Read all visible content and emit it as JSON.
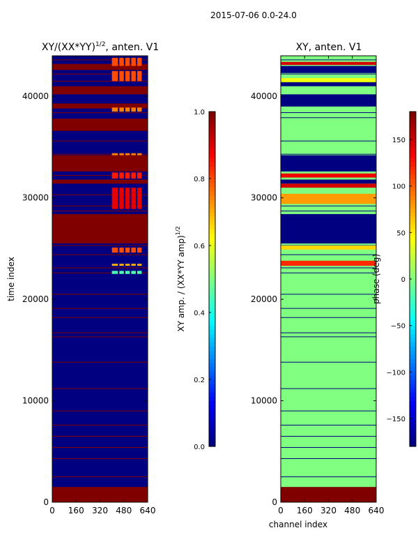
{
  "suptitle": "2015-07-06 0.0-24.0",
  "chart_data": [
    {
      "type": "heatmap",
      "title_prefix": "XY/(XX*YY)",
      "title_exponent": "1/2",
      "title_suffix": ", anten. V1",
      "xlabel": "",
      "ylabel": "time index",
      "xlim": [
        0,
        640
      ],
      "ylim": [
        0,
        44000
      ],
      "xticks": [
        0,
        160,
        320,
        480,
        640
      ],
      "yticks": [
        0,
        10000,
        20000,
        30000,
        40000
      ],
      "colormap": "jet",
      "background_value": 0.0,
      "bands": [
        {
          "from": 0,
          "to": 1500,
          "value": 1.0
        },
        {
          "from": 25500,
          "to": 28400,
          "value": 1.0
        },
        {
          "from": 31400,
          "to": 31800,
          "value": 1.0
        },
        {
          "from": 32600,
          "to": 34200,
          "value": 1.0
        },
        {
          "from": 36600,
          "to": 37800,
          "value": 1.0
        },
        {
          "from": 38800,
          "to": 39300,
          "value": 1.0
        },
        {
          "from": 40200,
          "to": 41000,
          "value": 1.0
        },
        {
          "from": 42600,
          "to": 43200,
          "value": 1.0
        }
      ],
      "lines": [
        2500,
        4300,
        5400,
        6500,
        7600,
        9000,
        11200,
        13800,
        16300,
        16700,
        18200,
        19100,
        20500,
        22600,
        23100,
        24400,
        25300,
        28700,
        29200,
        30300,
        32200,
        34300,
        35600,
        38400,
        41500,
        42200,
        43600
      ],
      "line_value": 1.0,
      "features": [
        {
          "from": 22500,
          "to": 22800,
          "value": 0.45
        },
        {
          "from": 23300,
          "to": 23500,
          "value": 0.7
        },
        {
          "from": 24600,
          "to": 25100,
          "value": 0.8
        },
        {
          "from": 28900,
          "to": 31000,
          "value": 0.9
        },
        {
          "from": 31900,
          "to": 32500,
          "value": 0.85
        },
        {
          "from": 34200,
          "to": 34400,
          "value": 0.75
        },
        {
          "from": 38500,
          "to": 38900,
          "value": 0.75
        },
        {
          "from": 41500,
          "to": 42500,
          "value": 0.8
        },
        {
          "from": 43000,
          "to": 43800,
          "value": 0.8
        }
      ],
      "colorbar": {
        "label_prefix": "XY amp. / (XX*YY amp)",
        "label_exponent": "1/2",
        "range": [
          0.0,
          1.0
        ],
        "ticks": [
          0.0,
          0.2,
          0.4,
          0.6,
          0.8,
          1.0
        ],
        "tick_labels": [
          "0.0",
          "0.2",
          "0.4",
          "0.6",
          "0.8",
          "1.0"
        ]
      }
    },
    {
      "type": "heatmap",
      "title": "XY, anten. V1",
      "xlabel": "channel index",
      "ylabel": "",
      "xlim": [
        0,
        640
      ],
      "ylim": [
        0,
        44000
      ],
      "xticks": [
        0,
        160,
        320,
        480,
        640
      ],
      "yticks": [
        0,
        10000,
        20000,
        30000,
        40000
      ],
      "colormap": "jet",
      "background_value": 0,
      "bands": [
        {
          "from": 0,
          "to": 1500,
          "value": 180
        },
        {
          "from": 25500,
          "to": 28400,
          "value": -180
        },
        {
          "from": 31400,
          "to": 31800,
          "value": -180
        },
        {
          "from": 32600,
          "to": 34200,
          "value": -180
        },
        {
          "from": 36600,
          "to": 37800,
          "value": 0
        },
        {
          "from": 34500,
          "to": 36500,
          "value": 0
        },
        {
          "from": 39000,
          "to": 40200,
          "value": -180
        },
        {
          "from": 41000,
          "to": 41600,
          "value": -180
        },
        {
          "from": 42300,
          "to": 43000,
          "value": -180
        }
      ],
      "lines": [
        2500,
        4300,
        5400,
        6500,
        7600,
        9000,
        11200,
        13800,
        16300,
        16700,
        18200,
        19100,
        20500,
        22600,
        23100,
        24400,
        25300,
        28700,
        29200,
        30300,
        32200,
        34300,
        35600,
        37900,
        38400,
        39400,
        41500,
        42200,
        43600
      ],
      "line_value": -180,
      "features": [
        {
          "from": 23300,
          "to": 23800,
          "value": 120
        },
        {
          "from": 24900,
          "to": 25300,
          "value": 60
        },
        {
          "from": 29400,
          "to": 30400,
          "value": 80
        },
        {
          "from": 31000,
          "to": 31400,
          "value": 150
        },
        {
          "from": 32000,
          "to": 32400,
          "value": 140
        },
        {
          "from": 41400,
          "to": 41800,
          "value": 40
        },
        {
          "from": 43100,
          "to": 43400,
          "value": 150
        }
      ],
      "colorbar": {
        "label": "phase (deg)",
        "range": [
          -180,
          180
        ],
        "ticks": [
          -150,
          -100,
          -50,
          0,
          50,
          100,
          150
        ],
        "tick_labels": [
          "−150",
          "−100",
          "−50",
          "0",
          "50",
          "100",
          "150"
        ]
      }
    }
  ]
}
